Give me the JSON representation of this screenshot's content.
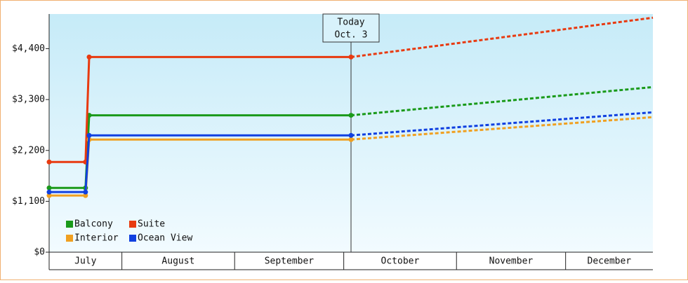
{
  "chart_data": {
    "type": "line",
    "x": [
      0,
      10,
      11,
      83
    ],
    "forecast_x": [
      83,
      166
    ],
    "xlim": [
      0,
      166
    ],
    "month_bands": [
      {
        "label": "July",
        "from": 0,
        "to": 20
      },
      {
        "label": "August",
        "from": 20,
        "to": 51
      },
      {
        "label": "September",
        "from": 51,
        "to": 81
      },
      {
        "label": "October",
        "from": 81,
        "to": 112
      },
      {
        "label": "November",
        "from": 112,
        "to": 142
      },
      {
        "label": "December",
        "from": 142,
        "to": 166
      }
    ],
    "ylim": [
      0,
      5150
    ],
    "yticks": [
      {
        "value": 0,
        "label": "$0"
      },
      {
        "value": 1100,
        "label": "$1,100"
      },
      {
        "value": 2200,
        "label": "$2,200"
      },
      {
        "value": 3300,
        "label": "$3,300"
      },
      {
        "value": 4400,
        "label": "$4,400"
      }
    ],
    "grid": false,
    "legend": "bottom-left",
    "annotation": {
      "x": 83,
      "label": [
        "Today",
        "Oct. 3"
      ]
    },
    "series": [
      {
        "name": "Balcony",
        "color": "#1a9a1a",
        "values": [
          1390,
          1390,
          2960,
          2960
        ],
        "forecast": [
          2960,
          3570
        ]
      },
      {
        "name": "Suite",
        "color": "#e83a10",
        "values": [
          1950,
          1950,
          4220,
          4220
        ],
        "forecast": [
          4220,
          5070
        ]
      },
      {
        "name": "Interior",
        "color": "#f0a020",
        "values": [
          1225,
          1225,
          2435,
          2435
        ],
        "forecast": [
          2435,
          2920
        ]
      },
      {
        "name": "Ocean View",
        "color": "#1040e0",
        "values": [
          1300,
          1300,
          2525,
          2525
        ],
        "forecast": [
          2525,
          3025
        ]
      }
    ]
  }
}
